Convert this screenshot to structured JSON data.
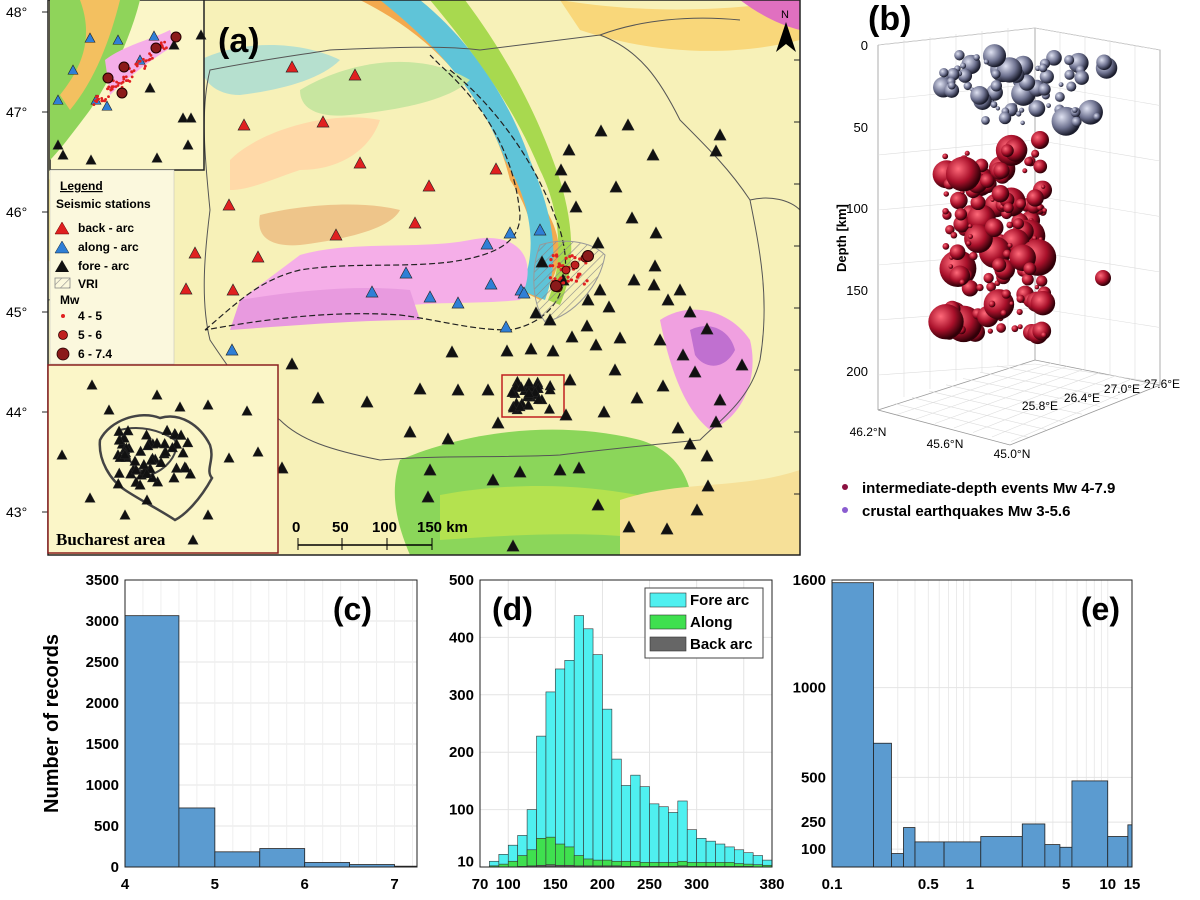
{
  "colors": {
    "map_bg": "#f7f1b8",
    "back_arc": "#e02020",
    "along_arc": "#2f7fd6",
    "fore_arc": "#111111",
    "bar_blue": "#5b9bd0",
    "fore_cyan": "#4ff0f0",
    "along_green": "#3fe04f",
    "back_grey": "#666666",
    "deep_sphere": "#b0102a",
    "shallow_sphere": "#6e7290"
  },
  "panel_a": {
    "label": "(a)",
    "north": "N",
    "lat_labels": [
      "48°",
      "47°",
      "46°",
      "45°",
      "44°",
      "43°"
    ],
    "legend": {
      "title": "Legend",
      "stations_title": "Seismic stations",
      "back_arc": "back - arc",
      "along_arc": "along - arc",
      "fore_arc": "fore - arc",
      "vri": "VRI",
      "mw_title": "Mw",
      "mw1": "4 - 5",
      "mw2": "5 - 6",
      "mw3": "6 - 7.4"
    },
    "scalebar": {
      "t0": "0",
      "t1": "50",
      "t2": "100",
      "t3": "150 km"
    },
    "inset_label": "Bucharest area"
  },
  "panel_b": {
    "label": "(b)",
    "ylabel": "Depth [km]",
    "depth_ticks": [
      "0",
      "50",
      "100",
      "150",
      "200"
    ],
    "lon_ticks": [
      "25.8°E",
      "26.4°E",
      "27.0°E",
      "27.6°E"
    ],
    "lat_ticks": [
      "46.2°N",
      "45.6°N",
      "45.0°N"
    ],
    "legend1": "intermediate-depth events Mw 4-7.9",
    "legend2": "crustal earthquakes Mw 3-5.6"
  },
  "chart_data": [
    {
      "id": "c",
      "label": "(c)",
      "type": "bar",
      "ylabel": "Number of records",
      "ylim": [
        0,
        3500
      ],
      "xlim": [
        4,
        7.25
      ],
      "yticks": [
        0,
        500,
        1000,
        1500,
        2000,
        2500,
        3000,
        3500
      ],
      "xticks": [
        4,
        5,
        6,
        7
      ],
      "bins": [
        [
          4,
          4.6
        ],
        [
          4.6,
          5
        ],
        [
          5,
          5.5
        ],
        [
          5.5,
          6
        ],
        [
          6,
          6.5
        ],
        [
          6.5,
          7
        ],
        [
          7,
          7.25
        ]
      ],
      "values": [
        3065,
        720,
        185,
        225,
        55,
        30,
        10
      ]
    },
    {
      "id": "d",
      "label": "(d)",
      "type": "bar",
      "stacked": false,
      "ylim": [
        0,
        500
      ],
      "xlim": [
        70,
        380
      ],
      "yticks": [
        10,
        100,
        200,
        300,
        400,
        500
      ],
      "xticks": [
        70,
        100,
        150,
        200,
        250,
        300,
        380
      ],
      "bin_start": 80,
      "bin_width": 10,
      "legend": [
        "Fore arc",
        "Along",
        "Back arc"
      ],
      "series": [
        {
          "name": "Fore arc",
          "values": [
            10,
            22,
            38,
            55,
            100,
            228,
            305,
            345,
            360,
            438,
            415,
            370,
            275,
            188,
            142,
            160,
            140,
            110,
            105,
            95,
            115,
            65,
            50,
            45,
            40,
            35,
            30,
            25,
            20,
            12
          ]
        },
        {
          "name": "Along",
          "values": [
            2,
            5,
            10,
            20,
            30,
            50,
            52,
            40,
            35,
            20,
            14,
            12,
            12,
            10,
            10,
            10,
            8,
            8,
            8,
            8,
            10,
            8,
            8,
            8,
            8,
            8,
            6,
            5,
            4,
            3
          ]
        },
        {
          "name": "Back arc",
          "values": [
            0,
            0,
            0,
            1,
            2,
            3,
            4,
            3,
            3,
            2,
            2,
            2,
            2,
            2,
            1,
            1,
            1,
            1,
            1,
            1,
            2,
            1,
            1,
            1,
            1,
            1,
            1,
            1,
            0,
            0
          ]
        }
      ]
    },
    {
      "id": "e",
      "label": "(e)",
      "type": "bar",
      "x_scale": "log",
      "xlim": [
        0.1,
        15
      ],
      "ylim": [
        0,
        1600
      ],
      "yticks": [
        100,
        250,
        500,
        1000,
        1600
      ],
      "xticks": [
        0.1,
        0.5,
        1,
        5,
        10,
        15
      ],
      "xtick_labels": [
        "0.1",
        "0.5",
        "1",
        "5",
        "10",
        "15"
      ],
      "bins": [
        [
          0.1,
          0.2
        ],
        [
          0.2,
          0.27
        ],
        [
          0.27,
          0.33
        ],
        [
          0.33,
          0.4
        ],
        [
          0.4,
          0.65
        ],
        [
          0.65,
          1.2
        ],
        [
          1.2,
          2.4
        ],
        [
          2.4,
          3.5
        ],
        [
          3.5,
          4.5
        ],
        [
          4.5,
          5.5
        ],
        [
          5.5,
          10
        ],
        [
          10,
          14
        ],
        [
          14,
          15
        ]
      ],
      "values": [
        1585,
        690,
        75,
        220,
        140,
        140,
        170,
        240,
        125,
        110,
        480,
        170,
        235
      ]
    }
  ]
}
